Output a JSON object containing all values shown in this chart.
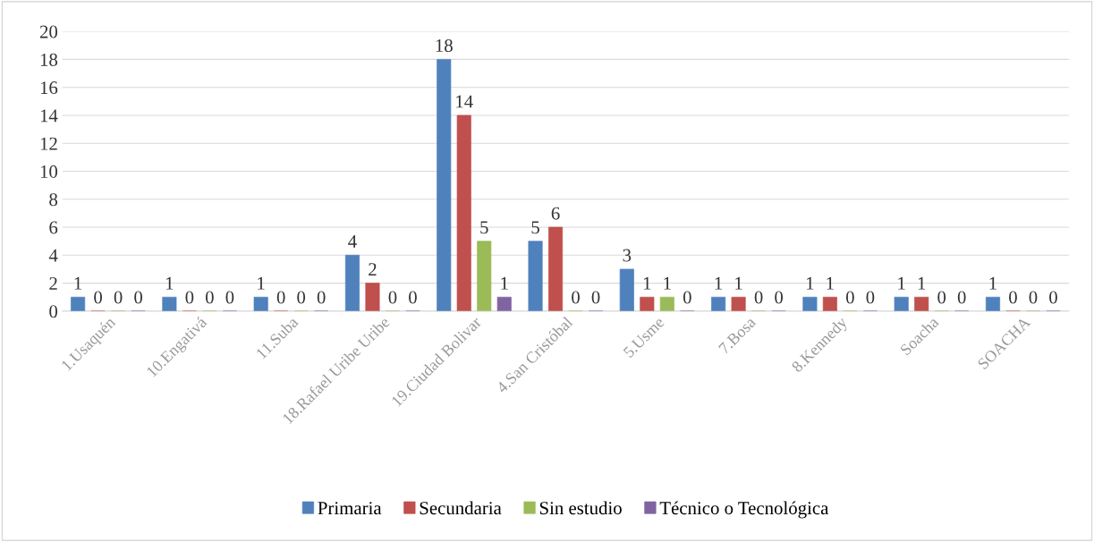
{
  "chart_data": {
    "type": "bar",
    "categories": [
      "1.Usaquén",
      "10.Engativá",
      "11.Suba",
      "18.Rafael Uribe Uribe",
      "19.Ciudad Bolivar",
      "4.San Cristóbal",
      "5.Usme",
      "7.Bosa",
      "8.Kennedy",
      "Soacha",
      "SOACHA"
    ],
    "series": [
      {
        "name": "Primaria",
        "color": "#4f81bd",
        "values": [
          1,
          1,
          1,
          4,
          18,
          5,
          3,
          1,
          1,
          1,
          1
        ]
      },
      {
        "name": "Secundaria",
        "color": "#c0504d",
        "values": [
          0,
          0,
          0,
          2,
          14,
          6,
          1,
          1,
          1,
          1,
          0
        ]
      },
      {
        "name": "Sin estudio",
        "color": "#9bbb59",
        "values": [
          0,
          0,
          0,
          0,
          5,
          0,
          1,
          0,
          0,
          0,
          0
        ]
      },
      {
        "name": "Técnico o Tecnológica",
        "color": "#8064a2",
        "values": [
          0,
          0,
          0,
          0,
          1,
          0,
          0,
          0,
          0,
          0,
          0
        ]
      }
    ],
    "ylim": [
      0,
      20
    ],
    "yticks": [
      0,
      2,
      4,
      6,
      8,
      10,
      12,
      14,
      16,
      18,
      20
    ],
    "grid": "y",
    "legend": "bottom",
    "data_labels": true
  }
}
